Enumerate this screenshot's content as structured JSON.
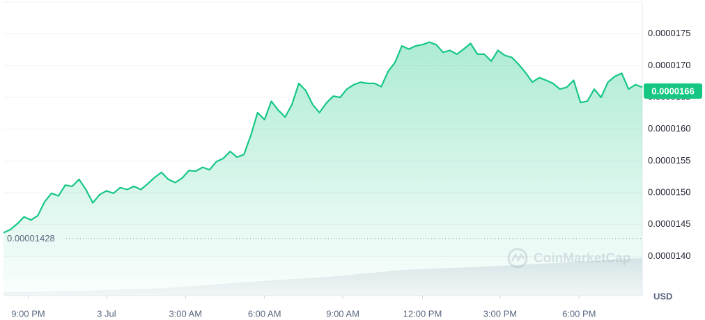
{
  "chart_data": {
    "type": "line",
    "color": "#16c784",
    "values": [
      1.437e-05,
      1.442e-05,
      1.451e-05,
      1.462e-05,
      1.457e-05,
      1.464e-05,
      1.486e-05,
      1.499e-05,
      1.495e-05,
      1.512e-05,
      1.51e-05,
      1.521e-05,
      1.505e-05,
      1.484e-05,
      1.497e-05,
      1.503e-05,
      1.499e-05,
      1.508e-05,
      1.505e-05,
      1.51e-05,
      1.505e-05,
      1.514e-05,
      1.524e-05,
      1.532e-05,
      1.521e-05,
      1.516e-05,
      1.523e-05,
      1.535e-05,
      1.534e-05,
      1.54e-05,
      1.536e-05,
      1.549e-05,
      1.554e-05,
      1.565e-05,
      1.556e-05,
      1.56e-05,
      1.59e-05,
      1.626e-05,
      1.615e-05,
      1.644e-05,
      1.63e-05,
      1.619e-05,
      1.639e-05,
      1.672e-05,
      1.661e-05,
      1.639e-05,
      1.626e-05,
      1.641e-05,
      1.652e-05,
      1.65e-05,
      1.663e-05,
      1.67e-05,
      1.674e-05,
      1.672e-05,
      1.672e-05,
      1.667e-05,
      1.691e-05,
      1.705e-05,
      1.731e-05,
      1.726e-05,
      1.731e-05,
      1.733e-05,
      1.737e-05,
      1.733e-05,
      1.721e-05,
      1.724e-05,
      1.718e-05,
      1.726e-05,
      1.735e-05,
      1.718e-05,
      1.718e-05,
      1.707e-05,
      1.724e-05,
      1.716e-05,
      1.713e-05,
      1.702e-05,
      1.689e-05,
      1.674e-05,
      1.681e-05,
      1.677e-05,
      1.672e-05,
      1.663e-05,
      1.666e-05,
      1.677e-05,
      1.642e-05,
      1.644e-05,
      1.663e-05,
      1.65e-05,
      1.674e-05,
      1.683e-05,
      1.688e-05,
      1.663e-05,
      1.67e-05,
      1.666e-05
    ],
    "xlim": [
      0,
      93
    ],
    "xticks": [
      {
        "value": 3.6,
        "label": "9:00 PM"
      },
      {
        "value": 15.0,
        "label": "3 Jul"
      },
      {
        "value": 26.5,
        "label": "3:00 AM"
      },
      {
        "value": 38.0,
        "label": "6:00 AM"
      },
      {
        "value": 49.4,
        "label": "9:00 AM"
      },
      {
        "value": 61.0,
        "label": "12:00 PM"
      },
      {
        "value": 72.3,
        "label": "3:00 PM"
      },
      {
        "value": 83.8,
        "label": "6:00 PM"
      }
    ],
    "ylim": [
      1.338e-05,
      1.8e-05
    ],
    "yticks": [
      1.75e-05,
      {
        "value": 1.7e-05,
        "label": "0.0000170"
      },
      1.65e-05,
      {
        "value": 1.6e-05,
        "label": "0.0000160"
      },
      1.55e-05,
      {
        "value": 1.5e-05,
        "label": "0.0000150"
      },
      1.45e-05,
      {
        "value": 1.4e-05,
        "label": "0.0000140"
      }
    ],
    "grid": true,
    "baseline": 1.428e-05,
    "current_price": 1.66e-05,
    "currency": "USD",
    "watermark": "CoinMarketCap"
  }
}
